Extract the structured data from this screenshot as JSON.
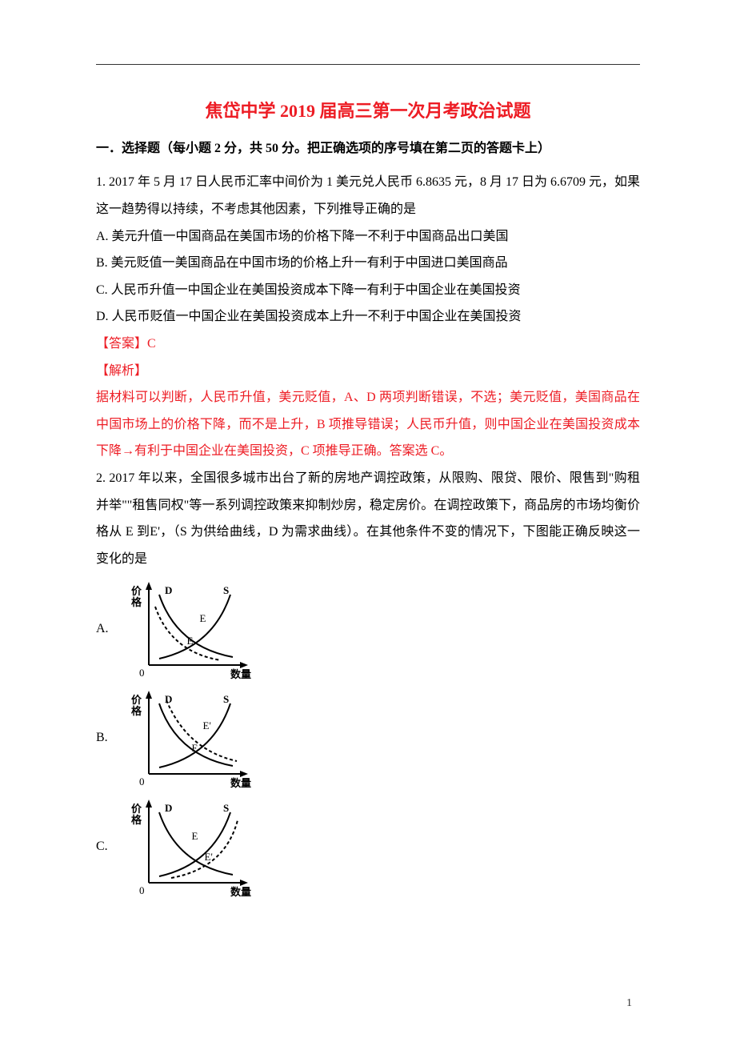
{
  "title": "焦岱中学 2019 届高三第一次月考政治试题",
  "title_color": "#ed1c24",
  "section_header": "一．选择题（每小题 2 分，共 50 分。把正确选项的序号填在第二页的答题卡上）",
  "q1": {
    "stem": "1. 2017 年 5 月 17 日人民币汇率中间价为 1 美元兑人民币 6.8635 元，8 月 17 日为 6.6709 元，如果这一趋势得以持续，不考虑其他因素，下列推导正确的是",
    "optA": "A.  美元升值一中国商品在美国市场的价格下降一不利于中国商品出口美国",
    "optB": "B.  美元贬值一美国商品在中国市场的价格上升一有利于中国进口美国商品",
    "optC": "C.  人民币升值一中国企业在美国投资成本下降一有利于中国企业在美国投资",
    "optD": "D.  人民币贬值一中国企业在美国投资成本上升一不利于中国企业在美国投资",
    "answer_label": "【答案】",
    "answer_value": "C",
    "explain_label": "【解析】",
    "explain_body": "据材料可以判断，人民币升值，美元贬值，A、D 两项判断错误，不选；美元贬值，美国商品在中国市场上的价格下降，而不是上升，B 项推导错误；人民币升值，则中国企业在美国投资成本下降→有利于中国企业在美国投资，C 项推导正确。答案选 C。"
  },
  "q2": {
    "stem": "2. 2017 年以来，全国很多城市出台了新的房地产调控政策，从限购、限贷、限价、限售到\"购租并举\"\"租售同权\"等一系列调控政策来抑制炒房，稳定房价。在调控政策下，商品房的市场均衡价格从 E 到E'，（S 为供给曲线，D 为需求曲线）。在其他条件不变的情况下，下图能正确反映这一变化的是",
    "optA_label": "A.",
    "optB_label": "B.",
    "optC_label": "C."
  },
  "chart": {
    "width": 170,
    "height": 130,
    "axis_color": "#000000",
    "curve_color": "#000000",
    "curve_width": 2,
    "dash_pattern": "4,3",
    "y_label": "价格",
    "x_label": "数量",
    "label_D": "D",
    "label_S": "S",
    "label_E": "E",
    "label_Ep": "E'",
    "label_fontsize": 13,
    "axis_label_fontsize": 13
  },
  "page_number": "1"
}
